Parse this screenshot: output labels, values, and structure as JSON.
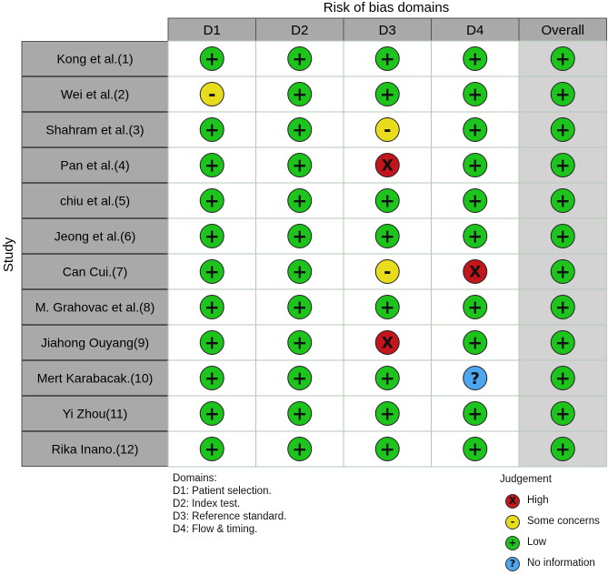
{
  "chart_data": {
    "type": "table",
    "title": "Risk of bias domains",
    "ylabel": "Study",
    "columns": [
      "D1",
      "D2",
      "D3",
      "D4",
      "Overall"
    ],
    "rows": [
      {
        "study": "Kong et al.(1)",
        "judgements": [
          "Low",
          "Low",
          "Low",
          "Low",
          "Low"
        ]
      },
      {
        "study": "Wei et al.(2)",
        "judgements": [
          "Some concerns",
          "Low",
          "Low",
          "Low",
          "Low"
        ]
      },
      {
        "study": "Shahram et al.(3)",
        "judgements": [
          "Low",
          "Low",
          "Some concerns",
          "Low",
          "Low"
        ]
      },
      {
        "study": "Pan et al.(4)",
        "judgements": [
          "Low",
          "Low",
          "High",
          "Low",
          "Low"
        ]
      },
      {
        "study": "chiu et al.(5)",
        "judgements": [
          "Low",
          "Low",
          "Low",
          "Low",
          "Low"
        ]
      },
      {
        "study": "Jeong et al.(6)",
        "judgements": [
          "Low",
          "Low",
          "Low",
          "Low",
          "Low"
        ]
      },
      {
        "study": "Can Cui.(7)",
        "judgements": [
          "Low",
          "Low",
          "Some concerns",
          "High",
          "Low"
        ]
      },
      {
        "study": "M. Grahovac et al.(8)",
        "judgements": [
          "Low",
          "Low",
          "Low",
          "Low",
          "Low"
        ]
      },
      {
        "study": "Jiahong Ouyang(9)",
        "judgements": [
          "Low",
          "Low",
          "High",
          "Low",
          "Low"
        ]
      },
      {
        "study": "Mert Karabacak.(10)",
        "judgements": [
          "Low",
          "Low",
          "Low",
          "No information",
          "Low"
        ]
      },
      {
        "study": "Yi Zhou(11)",
        "judgements": [
          "Low",
          "Low",
          "Low",
          "Low",
          "Low"
        ]
      },
      {
        "study": "Rika Inano.(12)",
        "judgements": [
          "Low",
          "Low",
          "Low",
          "Low",
          "Low"
        ]
      }
    ],
    "judgement_styles": {
      "Low": {
        "symbol": "+",
        "color": "#1cc41c"
      },
      "Some concerns": {
        "symbol": "-",
        "color": "#e8dc1c"
      },
      "High": {
        "symbol": "X",
        "color": "#c4141c"
      },
      "No information": {
        "symbol": "?",
        "color": "#4ea6f0"
      }
    },
    "colors": {
      "header_fill": "#a9a9a9",
      "study_fill": "#a9a9a9",
      "overall_fill": "#d3d3d3",
      "grid_line": "#b4c8b4"
    }
  },
  "domains_legend": {
    "title": "Domains:",
    "items": [
      "D1: Patient selection.",
      "D2: Index test.",
      "D3: Reference standard.",
      "D4: Flow & timing."
    ]
  },
  "judgement_legend": {
    "title": "Judgement",
    "items": [
      {
        "label": "High",
        "key": "High"
      },
      {
        "label": "Some concerns",
        "key": "Some concerns"
      },
      {
        "label": "Low",
        "key": "Low"
      },
      {
        "label": "No information",
        "key": "No information"
      }
    ]
  }
}
